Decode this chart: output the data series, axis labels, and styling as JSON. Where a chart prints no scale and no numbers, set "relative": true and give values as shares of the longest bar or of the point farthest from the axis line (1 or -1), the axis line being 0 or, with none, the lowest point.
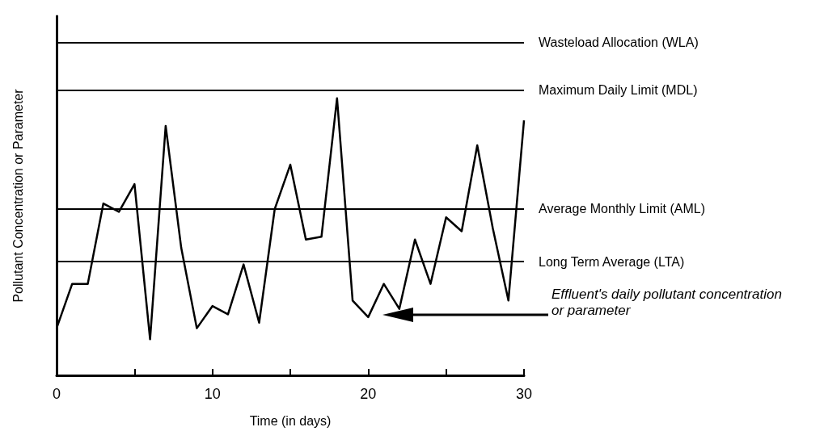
{
  "chart_data": {
    "type": "line",
    "relative": true,
    "xlabel": "Time (in days)",
    "ylabel": "Pollutant Concentration or Parameter",
    "x": [
      0,
      1,
      2,
      3,
      4,
      5,
      6,
      7,
      8,
      9,
      10,
      11,
      12,
      13,
      14,
      15,
      16,
      17,
      18,
      19,
      20,
      21,
      22,
      23,
      24,
      25,
      26,
      27,
      28,
      29,
      30
    ],
    "series": [
      {
        "color": "#000000",
        "values": [
          0.17,
          0.33,
          0.33,
          0.62,
          0.59,
          0.69,
          0.13,
          0.9,
          0.46,
          0.17,
          0.25,
          0.22,
          0.4,
          0.19,
          0.6,
          0.76,
          0.49,
          0.5,
          1,
          0.27,
          0.21,
          0.33,
          0.24,
          0.49,
          0.33,
          0.57,
          0.52,
          0.83,
          0.53,
          0.27,
          0.92
        ]
      }
    ],
    "xlim": [
      0,
      30
    ],
    "xticks": [
      0,
      {
        "value": 5,
        "label": null
      },
      10,
      {
        "value": 15,
        "label": null
      },
      20,
      {
        "value": 25,
        "label": null
      },
      30
    ],
    "ref_lines": [
      {
        "axis": "y",
        "value": 1.2,
        "label": "Wasteload Allocation (WLA)"
      },
      {
        "axis": "y",
        "value": 1.03,
        "label": "Maximum Daily Limit (MDL)"
      },
      {
        "axis": "y",
        "value": 0.6,
        "label": "Average Monthly Limit (AML)"
      },
      {
        "axis": "y",
        "value": 0.41,
        "label": "Long Term Average (LTA)"
      }
    ],
    "annotations": [
      "Effluent's daily pollutant concentration or parameter"
    ],
    "grid": false,
    "marker": "none",
    "line_style": "solid"
  }
}
